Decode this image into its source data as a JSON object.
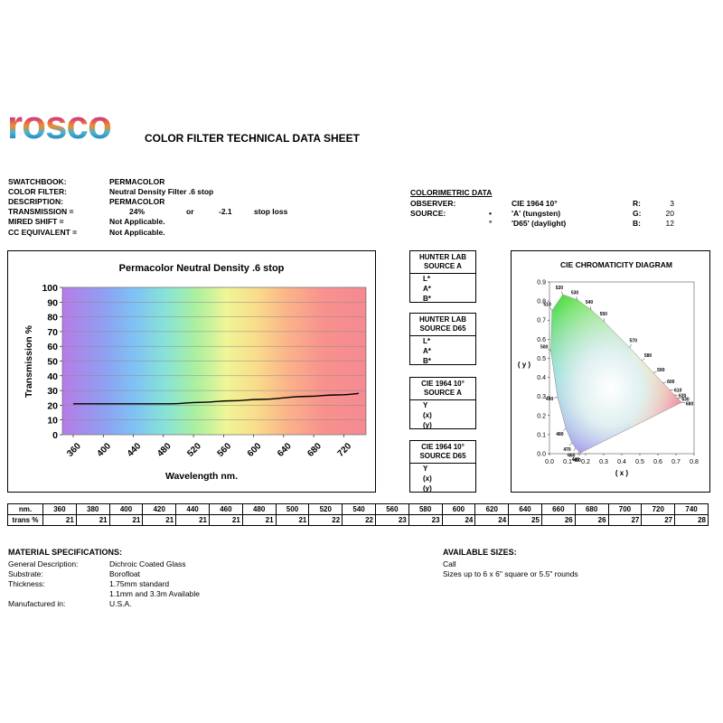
{
  "header": {
    "logo_text": "rosco",
    "title": "COLOR FILTER TECHNICAL DATA SHEET"
  },
  "info": {
    "swatchbook_label": "SWATCHBOOK:",
    "swatchbook_value": "PERMACOLOR",
    "color_filter_label": "COLOR FILTER:",
    "color_filter_value": "Neutral Density Filter .6 stop",
    "description_label": "DESCRIPTION:",
    "description_value": "PERMACOLOR",
    "transmission_label": "TRANSMISSION =",
    "transmission_value": "24%",
    "transmission_or": "or",
    "stop_value": "-2.1",
    "stop_text": "stop loss",
    "mired_label": "MIRED SHIFT =",
    "mired_value": "Not Applicable.",
    "cc_label": "CC EQUIVALENT =",
    "cc_value": "Not Applicable."
  },
  "colorimetric": {
    "heading": "COLORIMETRIC DATA",
    "observer_label": "OBSERVER:",
    "observer_value": "CIE 1964 10°",
    "source_label": "SOURCE:",
    "source_a_bullet": "•",
    "source_a": "'A' (tungsten)",
    "source_d65_bullet": "°",
    "source_d65": "'D65' (daylight)",
    "r_label": "R:",
    "r_value": "3",
    "g_label": "G:",
    "g_value": "20",
    "b_label": "B:",
    "b_value": "12"
  },
  "boxes": [
    {
      "title1": "HUNTER LAB",
      "title2": "SOURCE A",
      "rows": [
        "L*",
        "A*",
        "B*"
      ]
    },
    {
      "title1": "HUNTER LAB",
      "title2": "SOURCE D65",
      "rows": [
        "L*",
        "A*",
        "B*"
      ]
    },
    {
      "title1": "CIE 1964 10°",
      "title2": "SOURCE A",
      "rows": [
        "Y",
        "(x)",
        "(y)"
      ]
    },
    {
      "title1": "CIE 1964 10°",
      "title2": "SOURCE D65",
      "rows": [
        "Y",
        "(x)",
        "(y)"
      ]
    }
  ],
  "chart_data": [
    {
      "type": "line",
      "title": "Permacolor Neutral Density .6 stop",
      "xlabel": "Wavelength nm.",
      "ylabel": "Transmission %",
      "xlim": [
        360,
        740
      ],
      "ylim": [
        0,
        100
      ],
      "x_ticks": [
        360,
        400,
        440,
        480,
        520,
        560,
        600,
        640,
        680,
        720
      ],
      "y_ticks": [
        0,
        10,
        20,
        30,
        40,
        50,
        60,
        70,
        80,
        90,
        100
      ],
      "x": [
        360,
        380,
        400,
        420,
        440,
        460,
        480,
        500,
        520,
        540,
        560,
        580,
        600,
        620,
        640,
        660,
        680,
        700,
        720,
        740
      ],
      "y": [
        21,
        21,
        21,
        21,
        21,
        21,
        21,
        21,
        22,
        22,
        23,
        23,
        24,
        24,
        25,
        26,
        26,
        27,
        27,
        28
      ],
      "line_color": "#000000"
    },
    {
      "type": "scatter",
      "title": "CIE CHROMATICITY DIAGRAM",
      "xlabel": "( x )",
      "ylabel": "( y )",
      "xlim": [
        0,
        0.8
      ],
      "ylim": [
        0,
        0.9
      ],
      "x_ticks": [
        "0.0",
        "0.1",
        "0.2",
        "0.3",
        "0.4",
        "0.5",
        "0.6",
        "0.7",
        "0.8"
      ],
      "y_ticks": [
        "0.0",
        "0.1",
        "0.2",
        "0.3",
        "0.4",
        "0.5",
        "0.6",
        "0.7",
        "0.8",
        "0.9"
      ],
      "locus_labels": [
        {
          "label": "420",
          "x": 0.172,
          "y": 0.005
        },
        {
          "label": "440",
          "x": 0.164,
          "y": 0.011
        },
        {
          "label": "460",
          "x": 0.144,
          "y": 0.03
        },
        {
          "label": "470",
          "x": 0.124,
          "y": 0.058
        },
        {
          "label": "480",
          "x": 0.091,
          "y": 0.133
        },
        {
          "label": "490",
          "x": 0.045,
          "y": 0.295
        },
        {
          "label": "500",
          "x": 0.008,
          "y": 0.538
        },
        {
          "label": "510",
          "x": 0.014,
          "y": 0.75
        },
        {
          "label": "520",
          "x": 0.074,
          "y": 0.834
        },
        {
          "label": "530",
          "x": 0.155,
          "y": 0.806
        },
        {
          "label": "540",
          "x": 0.23,
          "y": 0.754
        },
        {
          "label": "550",
          "x": 0.302,
          "y": 0.692
        },
        {
          "label": "570",
          "x": 0.444,
          "y": 0.555
        },
        {
          "label": "580",
          "x": 0.512,
          "y": 0.487
        },
        {
          "label": "590",
          "x": 0.575,
          "y": 0.424
        },
        {
          "label": "600",
          "x": 0.627,
          "y": 0.372
        },
        {
          "label": "610",
          "x": 0.666,
          "y": 0.334
        },
        {
          "label": "620",
          "x": 0.691,
          "y": 0.308
        },
        {
          "label": "630",
          "x": 0.708,
          "y": 0.292
        },
        {
          "label": "680",
          "x": 0.731,
          "y": 0.269
        }
      ]
    }
  ],
  "table": {
    "row1_header": "nm.",
    "row2_header": "trans %",
    "nm": [
      "360",
      "380",
      "400",
      "420",
      "440",
      "460",
      "480",
      "500",
      "520",
      "540",
      "560",
      "580",
      "600",
      "620",
      "640",
      "660",
      "680",
      "700",
      "720",
      "740"
    ],
    "trans": [
      "21",
      "21",
      "21",
      "21",
      "21",
      "21",
      "21",
      "21",
      "22",
      "22",
      "23",
      "23",
      "24",
      "24",
      "25",
      "26",
      "26",
      "27",
      "27",
      "28"
    ]
  },
  "material": {
    "heading": "MATERIAL SPECIFICATIONS:",
    "general_label": "General Description:",
    "general_value": "Dichroic Coated Glass",
    "substrate_label": "Substrate:",
    "substrate_value": "Borofloat",
    "thickness_label": "Thickness:",
    "thickness_value1": "1.75mm standard",
    "thickness_value2": "1.1mm and 3.3m Available",
    "manufactured_label": "Manufactured in:",
    "manufactured_value": "U.S.A."
  },
  "sizes": {
    "heading": "AVAILABLE SIZES:",
    "line1": "Call",
    "line2": "Sizes up to 6 x 6\" square or 5.5\" rounds"
  }
}
